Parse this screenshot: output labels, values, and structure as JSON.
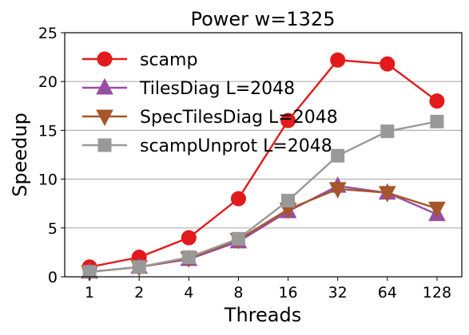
{
  "chart_data": {
    "type": "line",
    "title": "Power w=1325",
    "xlabel": "Threads",
    "ylabel": "Speedup",
    "categories": [
      "1",
      "2",
      "4",
      "8",
      "16",
      "32",
      "64",
      "128"
    ],
    "ylim": [
      0,
      25
    ],
    "yticks": [
      0,
      5,
      10,
      15,
      20,
      25
    ],
    "grid": "y",
    "legend_position": "top-left",
    "series": [
      {
        "name": "scamp",
        "color": "#e31a1c",
        "marker": "circle",
        "values": [
          1.0,
          2.0,
          4.0,
          8.0,
          16.0,
          22.2,
          21.8,
          18.0
        ]
      },
      {
        "name": "TilesDiag L=2048",
        "color": "#984ea3",
        "marker": "triangle-up",
        "values": [
          0.5,
          1.0,
          1.8,
          3.6,
          6.7,
          9.3,
          8.6,
          6.4
        ]
      },
      {
        "name": "SpecTilesDiag L=2048",
        "color": "#a65628",
        "marker": "triangle-down",
        "values": [
          0.5,
          1.0,
          1.9,
          3.8,
          6.9,
          9.0,
          8.6,
          7.0
        ]
      },
      {
        "name": "scampUnprot L=2048",
        "color": "#999999",
        "marker": "square",
        "values": [
          0.5,
          1.0,
          2.0,
          3.9,
          7.8,
          12.4,
          14.9,
          15.9
        ]
      }
    ]
  }
}
